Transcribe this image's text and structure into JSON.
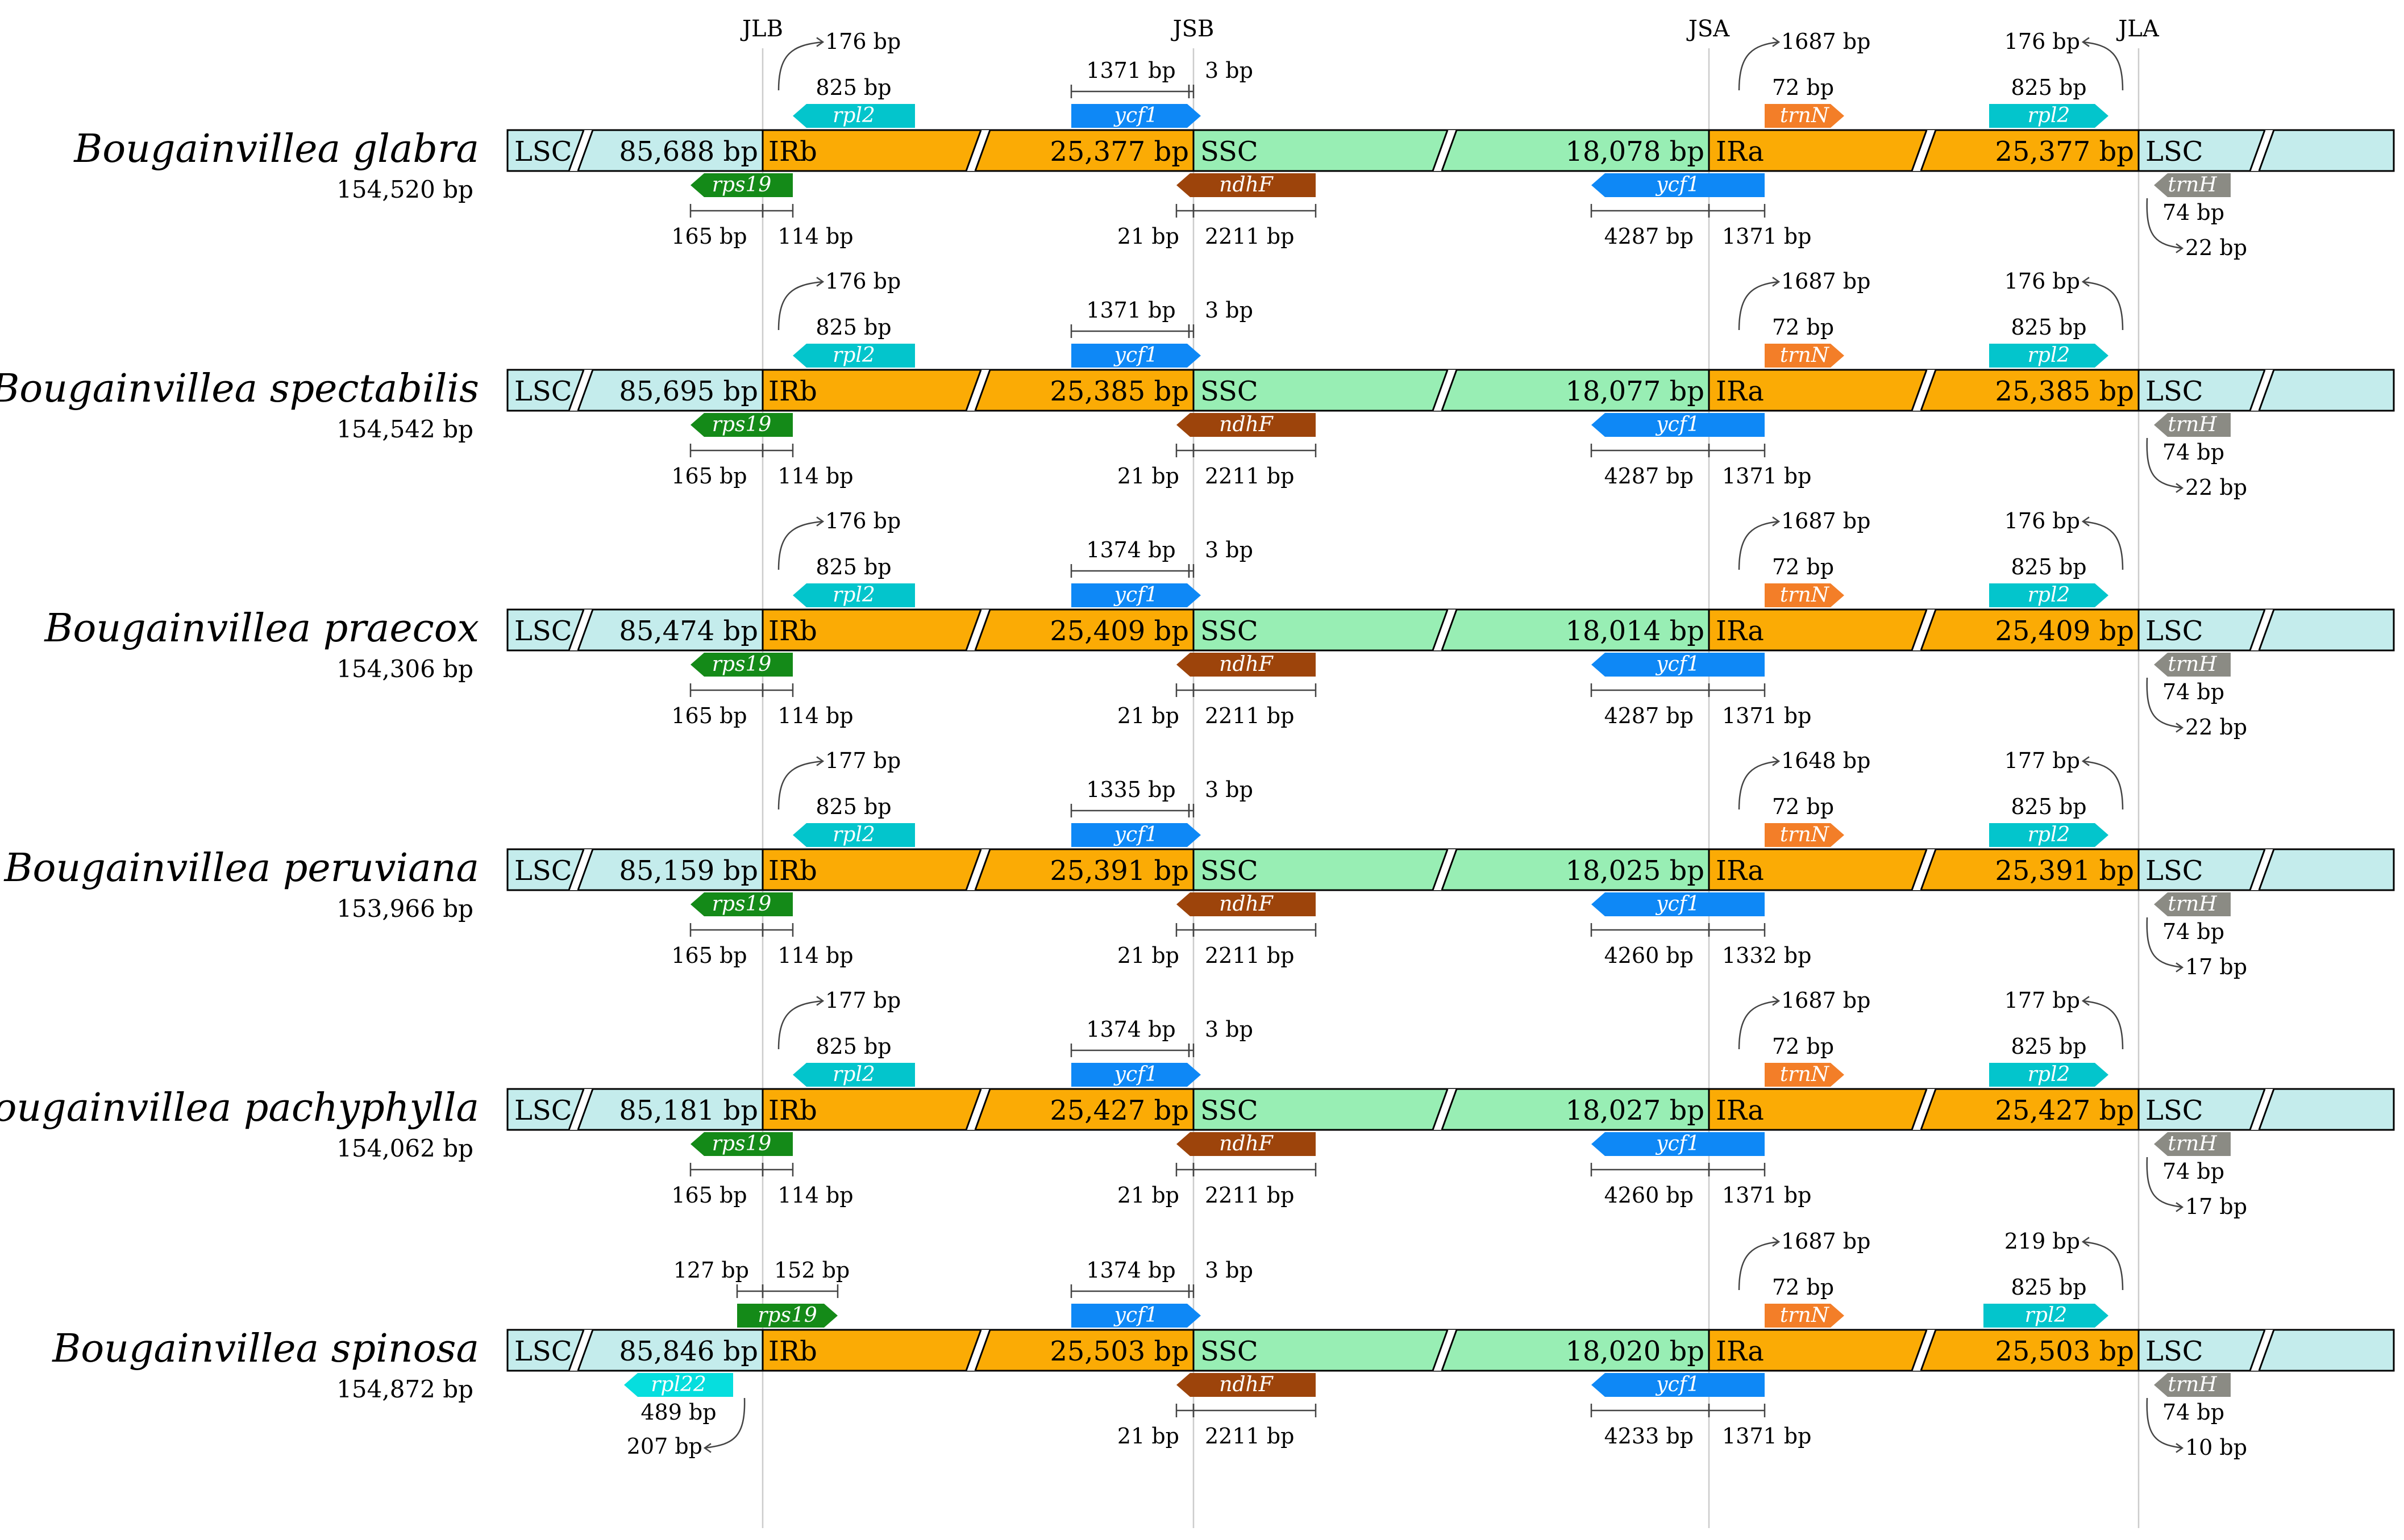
{
  "junctions": [
    "JLB",
    "JSB",
    "JSA",
    "JLA"
  ],
  "regions": {
    "lsc": "LSC",
    "irb": "IRb",
    "ssc": "SSC",
    "ira": "IRa"
  },
  "colors": {
    "lsc": "#c4ecec",
    "ir": "#fbab05",
    "ssc": "#98eeb4",
    "rps19": "#148a18",
    "rpl2": "#03c5cc",
    "ycf1": "#0e88f6",
    "ndhF": "#9d440b",
    "trnN": "#f37e28",
    "trnH": "#8b8b84",
    "rpl22": "#06dede"
  },
  "genes": {
    "rps19": "rps19",
    "rpl2": "rpl2",
    "ycf1": "ycf1",
    "ndhF": "ndhF",
    "trnN": "trnN",
    "trnH": "trnH",
    "rpl22": "rpl22"
  },
  "species": [
    {
      "name": "Bougainvillea glabra",
      "total": "154,520 bp",
      "lsc_len": "85,688 bp",
      "ir_len": "25,377 bp",
      "ssc_len": "18,078 bp",
      "rps19_left": "165 bp",
      "rps19_right": "114 bp",
      "rpl2_over": "176 bp",
      "rpl2_len": "825 bp",
      "ycf1b_len": "1371 bp",
      "ycf1b_gap": "3 bp",
      "ndhF_in": "21 bp",
      "ndhF_len": "2211 bp",
      "ycf1_ssc": "4287 bp",
      "ycf1_ira": "1371 bp",
      "trnN_dist": "1687 bp",
      "trnN_len": "72 bp",
      "rpl2a_over": "176 bp",
      "rpl2a_len": "825 bp",
      "trnH_len": "74 bp",
      "trnH_dist": "22 bp"
    },
    {
      "name": "Bougainvillea spectabilis",
      "total": "154,542 bp",
      "lsc_len": "85,695 bp",
      "ir_len": "25,385 bp",
      "ssc_len": "18,077 bp",
      "rps19_left": "165 bp",
      "rps19_right": "114 bp",
      "rpl2_over": "176 bp",
      "rpl2_len": "825 bp",
      "ycf1b_len": "1371 bp",
      "ycf1b_gap": "3 bp",
      "ndhF_in": "21 bp",
      "ndhF_len": "2211 bp",
      "ycf1_ssc": "4287 bp",
      "ycf1_ira": "1371 bp",
      "trnN_dist": "1687 bp",
      "trnN_len": "72 bp",
      "rpl2a_over": "176 bp",
      "rpl2a_len": "825 bp",
      "trnH_len": "74 bp",
      "trnH_dist": "22 bp"
    },
    {
      "name": "Bougainvillea praecox",
      "total": "154,306 bp",
      "lsc_len": "85,474 bp",
      "ir_len": "25,409 bp",
      "ssc_len": "18,014 bp",
      "rps19_left": "165 bp",
      "rps19_right": "114 bp",
      "rpl2_over": "176 bp",
      "rpl2_len": "825 bp",
      "ycf1b_len": "1374 bp",
      "ycf1b_gap": "3 bp",
      "ndhF_in": "21 bp",
      "ndhF_len": "2211 bp",
      "ycf1_ssc": "4287 bp",
      "ycf1_ira": "1371 bp",
      "trnN_dist": "1687 bp",
      "trnN_len": "72 bp",
      "rpl2a_over": "176 bp",
      "rpl2a_len": "825 bp",
      "trnH_len": "74 bp",
      "trnH_dist": "22 bp"
    },
    {
      "name": "Bougainvillea peruviana",
      "total": "153,966 bp",
      "lsc_len": "85,159 bp",
      "ir_len": "25,391 bp",
      "ssc_len": "18,025 bp",
      "rps19_left": "165 bp",
      "rps19_right": "114 bp",
      "rpl2_over": "177 bp",
      "rpl2_len": "825 bp",
      "ycf1b_len": "1335 bp",
      "ycf1b_gap": "3 bp",
      "ndhF_in": "21 bp",
      "ndhF_len": "2211 bp",
      "ycf1_ssc": "4260 bp",
      "ycf1_ira": "1332 bp",
      "trnN_dist": "1648 bp",
      "trnN_len": "72 bp",
      "rpl2a_over": "177 bp",
      "rpl2a_len": "825 bp",
      "trnH_len": "74 bp",
      "trnH_dist": "17 bp"
    },
    {
      "name": "Bougainvillea pachyphylla",
      "total": "154,062 bp",
      "lsc_len": "85,181 bp",
      "ir_len": "25,427 bp",
      "ssc_len": "18,027 bp",
      "rps19_left": "165 bp",
      "rps19_right": "114 bp",
      "rpl2_over": "177 bp",
      "rpl2_len": "825 bp",
      "ycf1b_len": "1374 bp",
      "ycf1b_gap": "3 bp",
      "ndhF_in": "21 bp",
      "ndhF_len": "2211 bp",
      "ycf1_ssc": "4260 bp",
      "ycf1_ira": "1371 bp",
      "trnN_dist": "1687 bp",
      "trnN_len": "72 bp",
      "rpl2a_over": "177 bp",
      "rpl2a_len": "825 bp",
      "trnH_len": "74 bp",
      "trnH_dist": "17 bp"
    },
    {
      "name": "Bougainvillea spinosa",
      "total": "154,872 bp",
      "lsc_len": "85,846 bp",
      "ir_len": "25,503 bp",
      "ssc_len": "18,020 bp",
      "rps19_left": "127 bp",
      "rps19_right": "152 bp",
      "rpl22_len": "489 bp",
      "rpl22_dist": "207 bp",
      "ycf1b_len": "1374 bp",
      "ycf1b_gap": "3 bp",
      "ndhF_in": "21 bp",
      "ndhF_len": "2211 bp",
      "ycf1_ssc": "4233 bp",
      "ycf1_ira": "1371 bp",
      "trnN_dist": "1687 bp",
      "trnN_len": "72 bp",
      "rpl2a_over": "219 bp",
      "rpl2a_len": "825 bp",
      "trnH_len": "74 bp",
      "trnH_dist": "10 bp"
    }
  ]
}
